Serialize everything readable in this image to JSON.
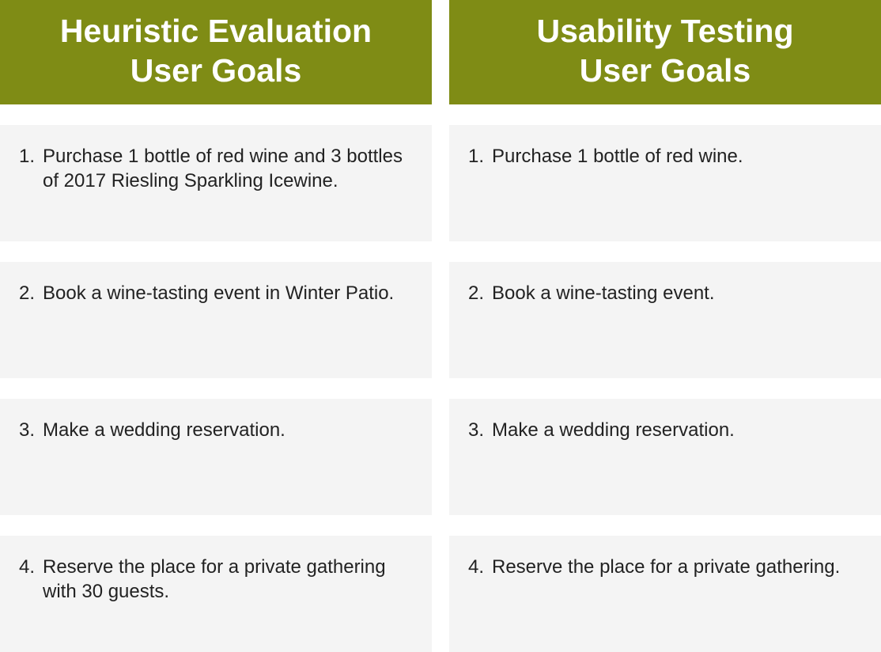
{
  "left": {
    "header": {
      "line1": "Heuristic Evaluation",
      "line2": "User Goals"
    },
    "goals": [
      {
        "number": "1.",
        "text": "Purchase 1 bottle of red wine and 3 bottles of 2017 Riesling Sparkling Icewine."
      },
      {
        "number": "2.",
        "text": "Book a wine-tasting event in Winter Patio."
      },
      {
        "number": "3.",
        "text": "Make a wedding reservation."
      },
      {
        "number": "4.",
        "text": "Reserve the place for a private gathering with 30 guests."
      }
    ]
  },
  "right": {
    "header": {
      "line1": "Usability Testing",
      "line2": "User Goals"
    },
    "goals": [
      {
        "number": "1.",
        "text": "Purchase 1 bottle of red wine."
      },
      {
        "number": "2.",
        "text": "Book a wine-tasting event."
      },
      {
        "number": "3.",
        "text": "Make a wedding reservation."
      },
      {
        "number": "4.",
        "text": "Reserve the place for a private gathering."
      }
    ]
  },
  "colors": {
    "header_background": "#7f8c15",
    "header_text": "#ffffff",
    "card_background": "#f4f4f4",
    "body_text": "#222222"
  }
}
